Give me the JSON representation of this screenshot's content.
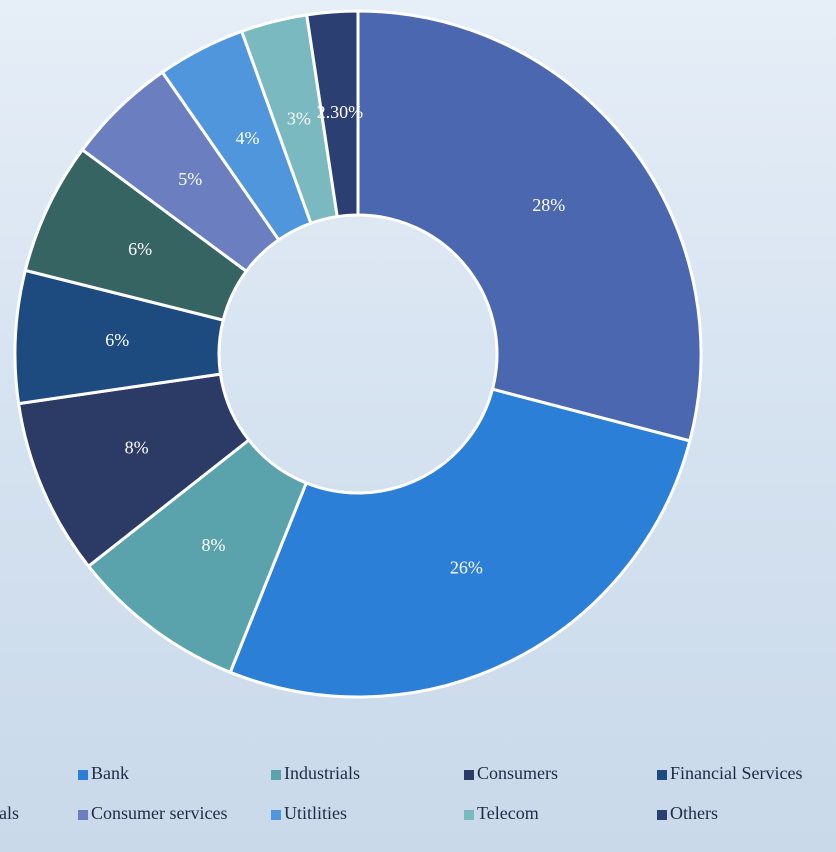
{
  "chart_data": {
    "type": "donut",
    "series": [
      {
        "name": null,
        "color": "#4a67b0"
      },
      {
        "name": "Bank",
        "color": "#2b7fd6"
      },
      {
        "name": "Industrials",
        "color": "#5aa3ad"
      },
      {
        "name": "Consumers",
        "color": "#2c3a66"
      },
      {
        "name": "Financial Services",
        "color": "#1d4b80"
      },
      {
        "name": "als",
        "color": "#356463"
      },
      {
        "name": "Consumer services",
        "color": "#6b7fc0"
      },
      {
        "name": "Utitlities",
        "color": "#4f96dc"
      },
      {
        "name": "Telecom",
        "color": "#79b9bf"
      },
      {
        "name": "Others",
        "color": "#2b3f73"
      }
    ],
    "values": [
      28,
      26,
      8,
      8,
      6,
      6,
      5,
      4,
      3,
      2.3
    ],
    "value_labels": [
      "28%",
      "26%",
      "8%",
      "8%",
      "6%",
      "6%",
      "5%",
      "4%",
      "3%",
      "2.30%"
    ]
  }
}
